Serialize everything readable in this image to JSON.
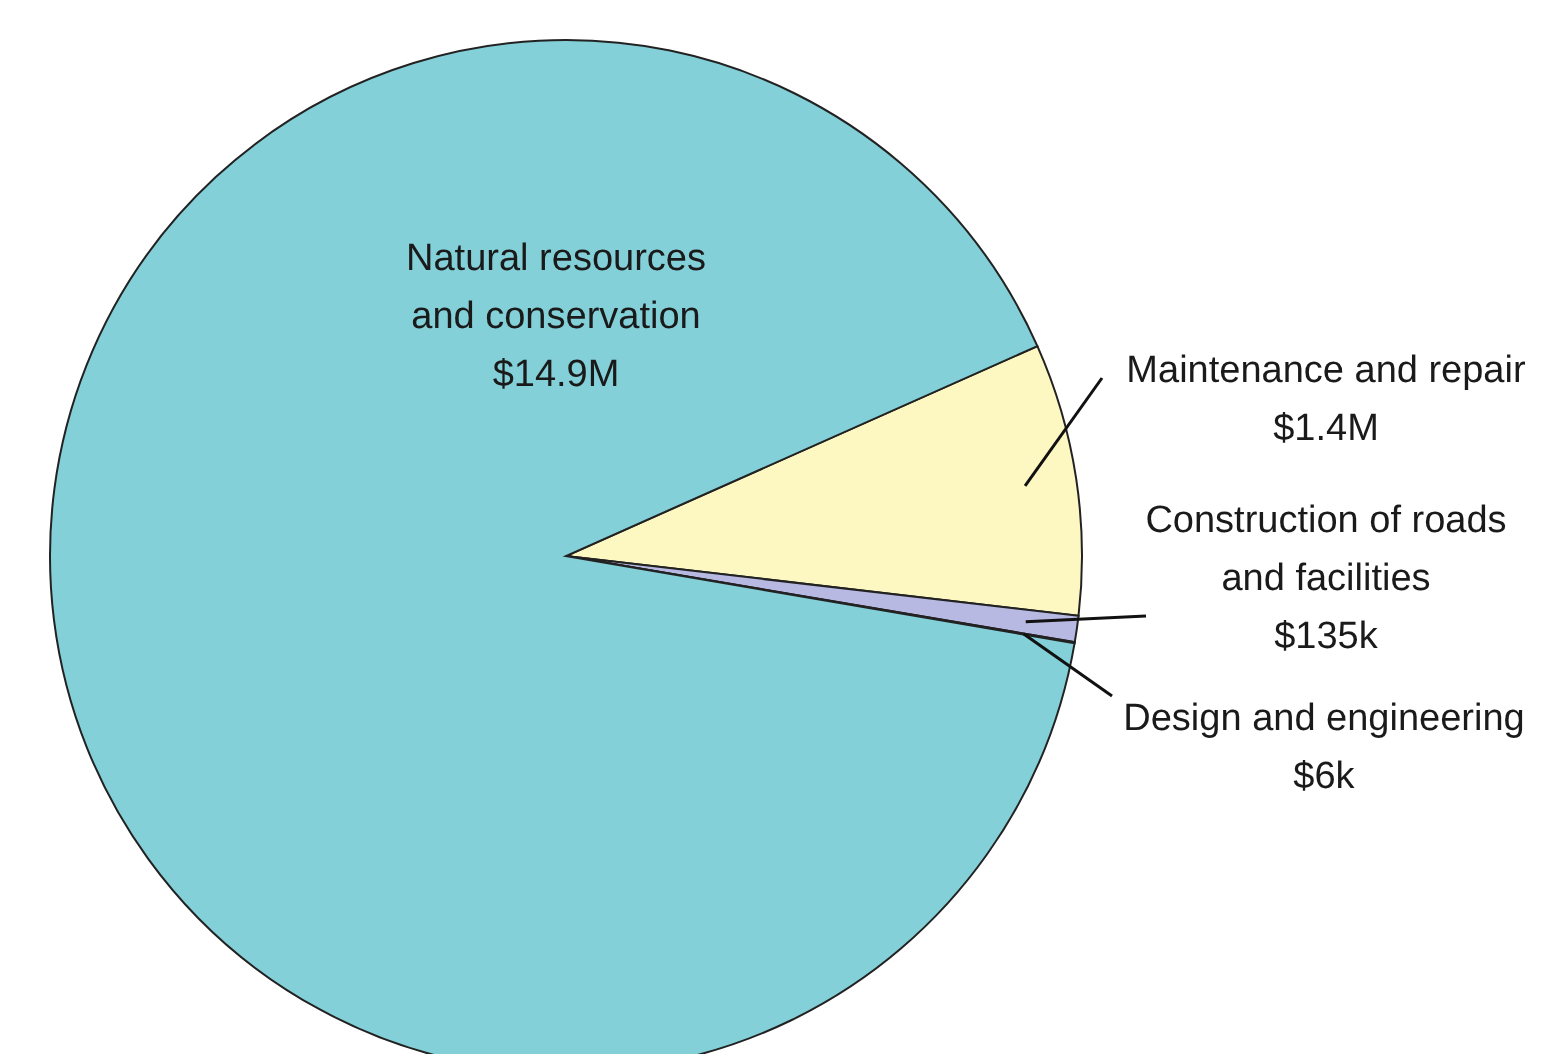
{
  "chart_data": {
    "type": "pie",
    "categories": [
      "Maintenance and repair",
      "Construction of roads and facilities",
      "Design and engineering",
      "Natural resources and conservation"
    ],
    "values": [
      1400000,
      135000,
      6000,
      14900000
    ],
    "value_labels": [
      "$1.4M",
      "$135k",
      "$6k",
      "$14.9M"
    ],
    "colors": [
      "#fdf8c2",
      "#b8b9e2",
      "#6f9dca",
      "#83d0d9"
    ]
  }
}
